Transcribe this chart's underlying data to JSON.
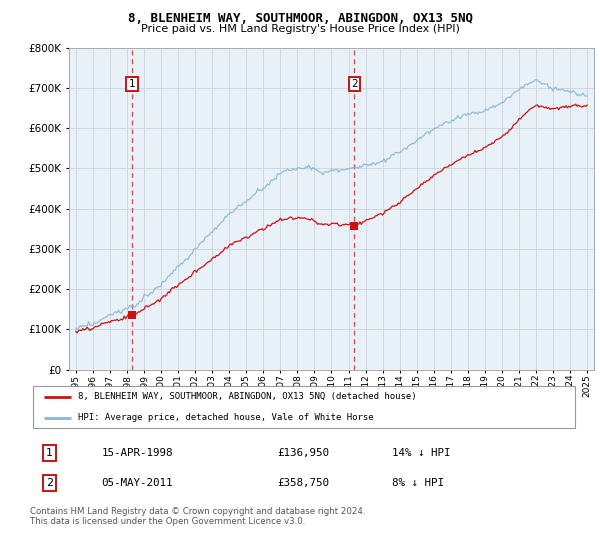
{
  "title": "8, BLENHEIM WAY, SOUTHMOOR, ABINGDON, OX13 5NQ",
  "subtitle": "Price paid vs. HM Land Registry's House Price Index (HPI)",
  "hpi_color": "#89b8d4",
  "price_color": "#cc1111",
  "vline_color": "#cc2222",
  "background_color": "#e8f0f8",
  "ylim": [
    0,
    800000
  ],
  "yticks": [
    0,
    100000,
    200000,
    300000,
    400000,
    500000,
    600000,
    700000,
    800000
  ],
  "xlim_start": 1994.6,
  "xlim_end": 2025.4,
  "sale1_year": 1998.29,
  "sale1_price": 136950,
  "sale2_year": 2011.34,
  "sale2_price": 358750,
  "legend_line1": "8, BLENHEIM WAY, SOUTHMOOR, ABINGDON, OX13 5NQ (detached house)",
  "legend_line2": "HPI: Average price, detached house, Vale of White Horse",
  "table_row1": [
    "1",
    "15-APR-1998",
    "£136,950",
    "14% ↓ HPI"
  ],
  "table_row2": [
    "2",
    "05-MAY-2011",
    "£358,750",
    "8% ↓ HPI"
  ],
  "footnote": "Contains HM Land Registry data © Crown copyright and database right 2024.\nThis data is licensed under the Open Government Licence v3.0."
}
